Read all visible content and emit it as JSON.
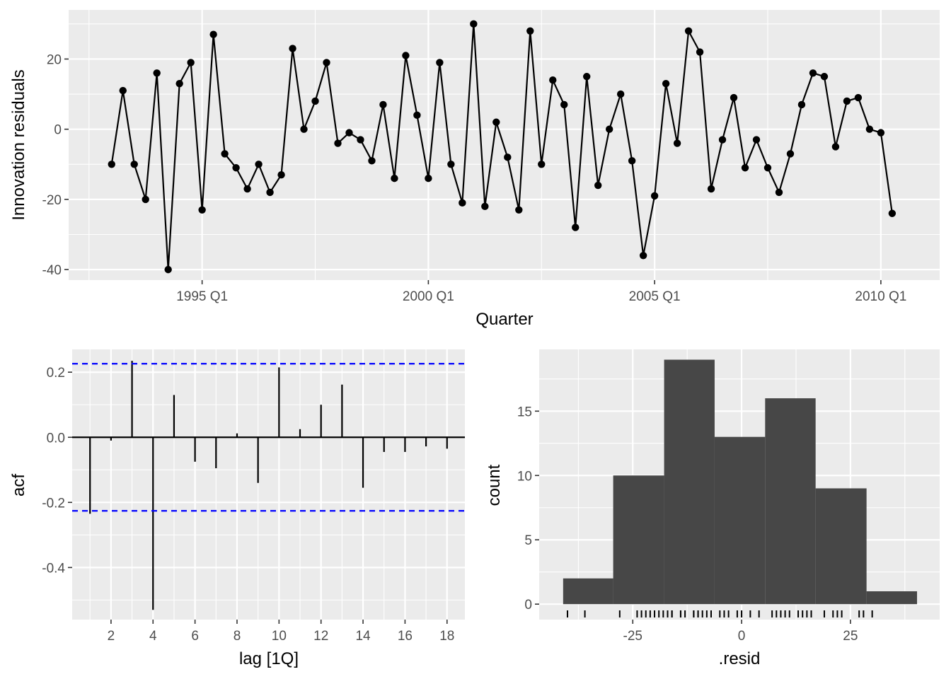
{
  "chart_data": [
    {
      "type": "line",
      "xlabel": "Quarter",
      "ylabel": "Innovation residuals",
      "x_tick_labels": [
        "1995 Q1",
        "2000 Q1",
        "2005 Q1",
        "2010 Q1"
      ],
      "y_tick_labels": [
        "-40",
        "-20",
        "0",
        "20"
      ],
      "ylim": [
        -43,
        34
      ],
      "xlim": [
        1992.05,
        2011.3
      ],
      "x_start": 1993.0,
      "x_step": 0.25,
      "grid": true,
      "series": [
        {
          "values": [
            -10,
            11,
            -10,
            -20,
            16,
            -40,
            13,
            19,
            -23,
            27,
            -7,
            -11,
            -17,
            -10,
            -18,
            -13,
            23,
            0,
            8,
            19,
            -4,
            -1,
            -3,
            -9,
            7,
            -14,
            21,
            4,
            -14,
            19,
            -10,
            -21,
            30,
            -22,
            2,
            -8,
            -23,
            28,
            -10,
            14,
            7,
            -28,
            15,
            -16,
            0,
            10,
            -9,
            -36,
            -19,
            13,
            -4,
            28,
            22,
            -17,
            -3,
            9,
            -11,
            -3,
            -11,
            -18,
            -7,
            7,
            16,
            15,
            -5,
            8,
            9,
            0,
            -1,
            -24
          ]
        }
      ]
    },
    {
      "type": "bar",
      "xlabel": "lag [1Q]",
      "ylabel": "acf",
      "x_tick_labels": [
        "2",
        "4",
        "6",
        "8",
        "10",
        "12",
        "14",
        "16",
        "18"
      ],
      "y_tick_labels": [
        "-0.4",
        "-0.2",
        "0.0",
        "0.2"
      ],
      "ylim": [
        -0.56,
        0.27
      ],
      "xlim": [
        0.15,
        18.85
      ],
      "lags": [
        1,
        2,
        3,
        4,
        5,
        6,
        7,
        8,
        9,
        10,
        11,
        12,
        13,
        14,
        15,
        16,
        17,
        18
      ],
      "values": [
        -0.235,
        -0.01,
        0.235,
        -0.53,
        0.13,
        -0.075,
        -0.095,
        0.012,
        -0.14,
        0.215,
        0.025,
        0.1,
        0.162,
        -0.155,
        -0.045,
        -0.045,
        -0.028,
        -0.035
      ],
      "confidence_bound": 0.226,
      "colors": {
        "bound": "#0000ff"
      }
    },
    {
      "type": "bar",
      "xlabel": ".resid",
      "ylabel": "count",
      "x_tick_labels": [
        "-25",
        "0",
        "25"
      ],
      "y_tick_labels": [
        "0",
        "5",
        "10",
        "15"
      ],
      "ylim": [
        -1.2,
        19.8
      ],
      "xlim": [
        -46.5,
        45.5
      ],
      "bins": [
        {
          "from": -41,
          "to": -29.5,
          "count": 2
        },
        {
          "from": -29.5,
          "to": -17.8,
          "count": 10
        },
        {
          "from": -17.8,
          "to": -6.2,
          "count": 19
        },
        {
          "from": -6.2,
          "to": 5.4,
          "count": 13
        },
        {
          "from": 5.4,
          "to": 17,
          "count": 16
        },
        {
          "from": 17,
          "to": 28.7,
          "count": 9
        },
        {
          "from": 28.7,
          "to": 40.3,
          "count": 1
        }
      ],
      "rug": [
        -40,
        -36,
        -28,
        -24,
        -23,
        -22,
        -21,
        -20,
        -19,
        -18,
        -17,
        -16,
        -16,
        -14,
        -14,
        -13,
        -11,
        -11,
        -10,
        -10,
        -9,
        -8,
        -7,
        -5,
        -4,
        -3,
        -1,
        0,
        2,
        4,
        7,
        8,
        9,
        10,
        11,
        13,
        14,
        15,
        16,
        19,
        21,
        22,
        23,
        27,
        28,
        30
      ],
      "colors": {
        "bar": "#474747"
      }
    }
  ]
}
